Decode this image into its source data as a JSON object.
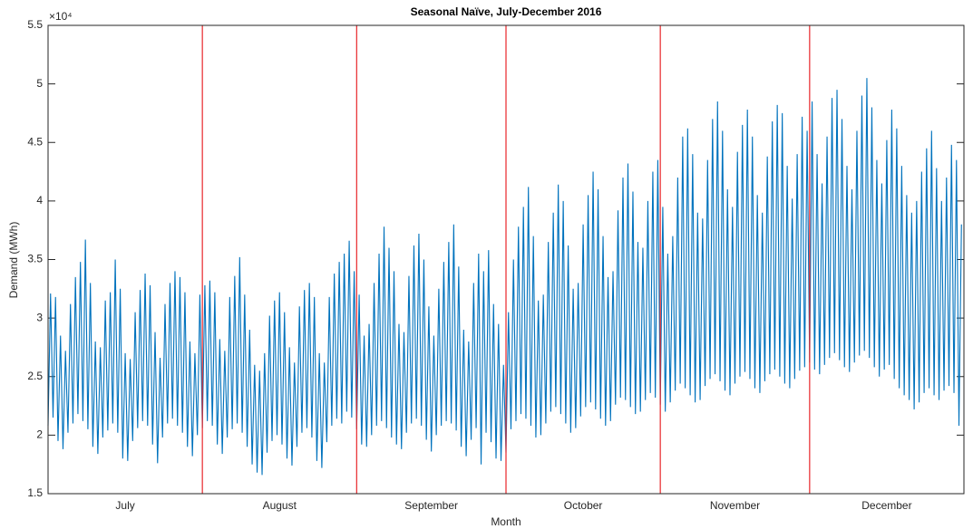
{
  "chart_data": {
    "type": "line",
    "title": "Seasonal Naïve, July-December 2016",
    "x_label": "Month",
    "y_label": "Demand (MWh)",
    "y_exponent_label": "×10⁴",
    "ylim": [
      1.5,
      5.5
    ],
    "yticks": [
      1.5,
      2,
      2.5,
      3,
      3.5,
      4,
      4.5,
      5,
      5.5
    ],
    "xlim": [
      0,
      368
    ],
    "months": [
      "July",
      "August",
      "September",
      "October",
      "November",
      "December"
    ],
    "month_boundaries": [
      62,
      124,
      184,
      246,
      306
    ],
    "boundary_color": "#e8262a",
    "series": [
      {
        "name": "Demand",
        "color": "#0072bd",
        "values": [
          2.08,
          3.21,
          2.15,
          3.18,
          1.95,
          2.85,
          1.88,
          2.72,
          2.02,
          3.12,
          2.1,
          3.35,
          2.18,
          3.48,
          2.12,
          3.67,
          2.05,
          3.3,
          1.9,
          2.8,
          1.84,
          2.75,
          1.98,
          3.15,
          2.04,
          3.22,
          2.1,
          3.5,
          2.02,
          3.25,
          1.8,
          2.7,
          1.78,
          2.65,
          1.95,
          3.05,
          2.06,
          3.24,
          2.12,
          3.38,
          2.08,
          3.28,
          1.92,
          2.88,
          1.76,
          2.66,
          1.98,
          3.12,
          2.1,
          3.3,
          2.14,
          3.4,
          2.08,
          3.35,
          2.02,
          3.22,
          1.9,
          2.8,
          1.82,
          2.7,
          2.0,
          3.2,
          2.06,
          3.28,
          2.12,
          3.32,
          2.08,
          3.22,
          1.92,
          2.82,
          1.84,
          2.72,
          1.98,
          3.18,
          2.05,
          3.36,
          2.1,
          3.52,
          2.02,
          3.2,
          1.9,
          2.9,
          1.75,
          2.6,
          1.68,
          2.55,
          1.66,
          2.7,
          1.85,
          3.02,
          1.95,
          3.15,
          2.0,
          3.22,
          1.92,
          3.05,
          1.8,
          2.75,
          1.74,
          2.62,
          1.9,
          3.1,
          2.02,
          3.24,
          2.06,
          3.3,
          1.98,
          3.18,
          1.78,
          2.7,
          1.72,
          2.62,
          1.94,
          3.18,
          2.08,
          3.38,
          2.14,
          3.48,
          2.1,
          3.55,
          2.2,
          3.66,
          2.15,
          3.4,
          2.05,
          3.2,
          1.92,
          2.85,
          1.9,
          2.95,
          2.0,
          3.3,
          2.08,
          3.55,
          2.12,
          3.78,
          2.06,
          3.6,
          1.98,
          3.4,
          1.92,
          2.95,
          1.88,
          2.88,
          2.02,
          3.36,
          2.1,
          3.62,
          2.14,
          3.72,
          2.08,
          3.5,
          1.96,
          3.1,
          1.86,
          2.85,
          2.0,
          3.25,
          2.08,
          3.48,
          2.12,
          3.65,
          2.1,
          3.8,
          2.04,
          3.44,
          1.9,
          2.9,
          1.82,
          2.8,
          1.96,
          3.3,
          2.06,
          3.55,
          1.75,
          3.4,
          2.02,
          3.58,
          1.94,
          3.12,
          1.8,
          2.95,
          1.78,
          2.6,
          1.85,
          3.05,
          2.05,
          3.5,
          2.12,
          3.78,
          2.18,
          3.95,
          2.14,
          4.12,
          2.08,
          3.7,
          1.98,
          3.15,
          2.0,
          3.2,
          2.1,
          3.65,
          2.2,
          3.9,
          2.24,
          4.14,
          2.18,
          4.0,
          2.1,
          3.62,
          2.02,
          3.25,
          2.06,
          3.3,
          2.16,
          3.8,
          2.24,
          4.05,
          2.28,
          4.25,
          2.22,
          4.1,
          2.14,
          3.7,
          2.08,
          3.35,
          2.12,
          3.4,
          2.26,
          3.92,
          2.32,
          4.2,
          2.3,
          4.32,
          2.24,
          4.08,
          2.18,
          3.65,
          2.2,
          3.6,
          2.3,
          4.0,
          2.36,
          4.25,
          2.32,
          4.35,
          2.26,
          3.95,
          2.2,
          3.55,
          2.28,
          3.7,
          2.38,
          4.2,
          2.44,
          4.55,
          2.4,
          4.62,
          2.34,
          4.4,
          2.28,
          3.9,
          2.3,
          3.85,
          2.42,
          4.35,
          2.48,
          4.7,
          2.52,
          4.85,
          2.46,
          4.6,
          2.38,
          4.1,
          2.34,
          3.95,
          2.44,
          4.42,
          2.5,
          4.65,
          2.54,
          4.78,
          2.48,
          4.55,
          2.4,
          4.05,
          2.36,
          3.9,
          2.46,
          4.38,
          2.52,
          4.68,
          2.56,
          4.82,
          2.5,
          4.75,
          2.44,
          4.3,
          2.4,
          4.02,
          2.48,
          4.4,
          2.55,
          4.72,
          2.58,
          4.6,
          2.62,
          4.85,
          2.56,
          4.4,
          2.52,
          4.15,
          2.6,
          4.55,
          2.66,
          4.88,
          2.7,
          4.95,
          2.64,
          4.7,
          2.58,
          4.3,
          2.54,
          4.1,
          2.62,
          4.6,
          2.68,
          4.9,
          2.72,
          5.05,
          2.66,
          4.8,
          2.58,
          4.35,
          2.5,
          4.15,
          2.56,
          4.52,
          2.6,
          4.78,
          2.48,
          4.62,
          2.4,
          4.3,
          2.34,
          4.05,
          2.3,
          3.9,
          2.22,
          4.0,
          2.28,
          4.25,
          2.36,
          4.45,
          2.4,
          4.6,
          2.34,
          4.28,
          2.3,
          4.0,
          2.38,
          4.2,
          2.42,
          4.48,
          2.36,
          4.35,
          2.08,
          3.8
        ]
      }
    ]
  }
}
